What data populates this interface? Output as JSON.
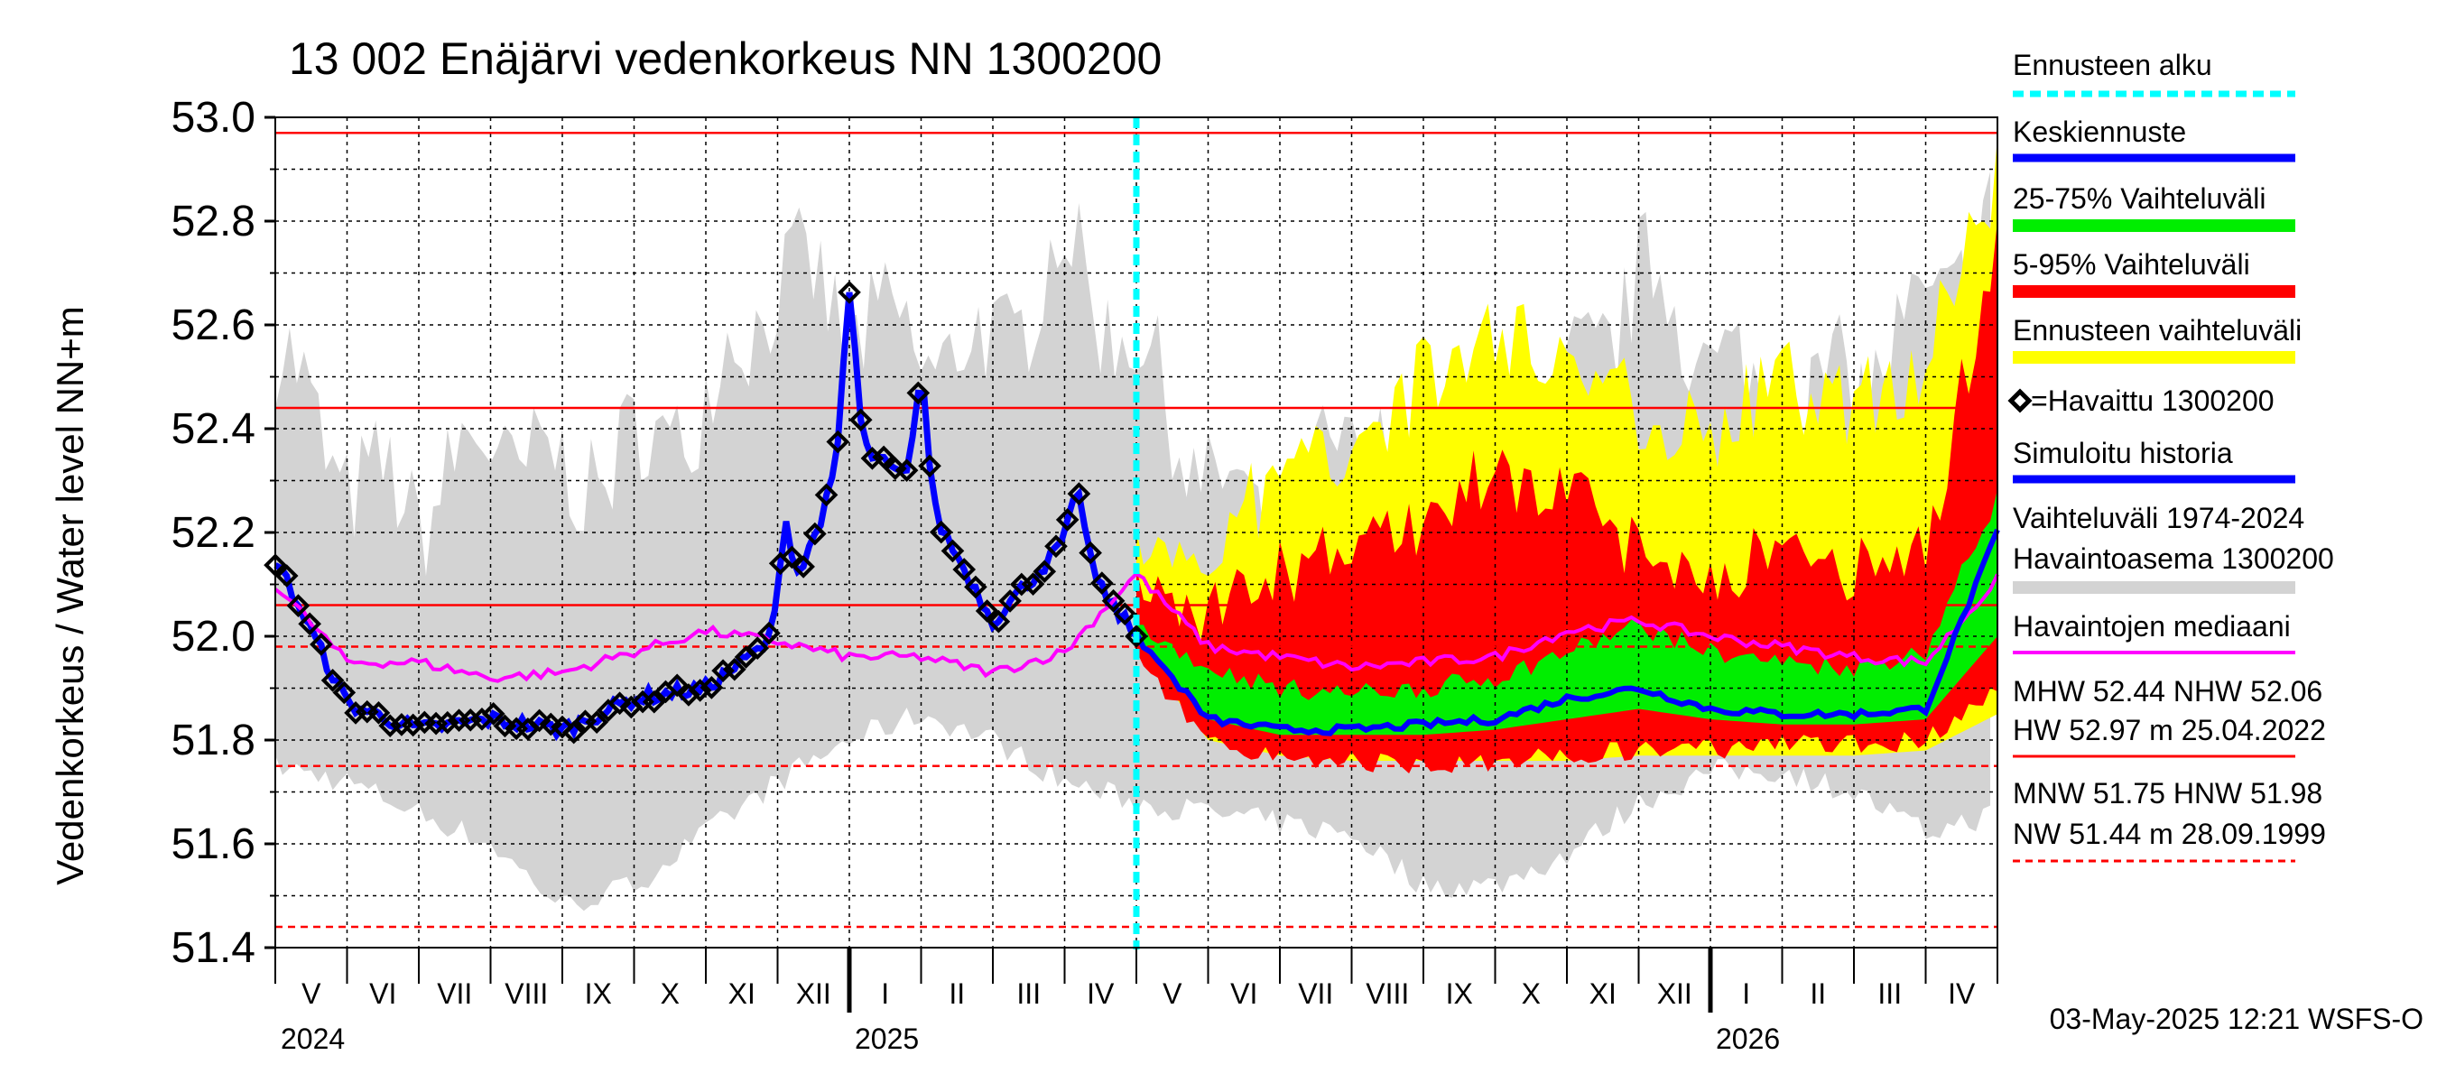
{
  "chart_data": {
    "type": "line",
    "title": "13 002 Enäjärvi vedenkorkeus NN 1300200",
    "ylabel": "Vedenkorkeus / Water level    NN+m",
    "ylim": [
      51.4,
      53.0
    ],
    "yticks": [
      "51.4",
      "51.6",
      "51.8",
      "52.0",
      "52.2",
      "52.4",
      "52.6",
      "52.8",
      "53.0"
    ],
    "months": [
      "V",
      "VI",
      "VII",
      "VIII",
      "IX",
      "X",
      "XI",
      "XII",
      "I",
      "II",
      "III",
      "IV",
      "V",
      "VI",
      "VII",
      "VIII",
      "IX",
      "X",
      "XI",
      "XII",
      "I",
      "II",
      "III",
      "IV"
    ],
    "years": [
      "2024",
      "2025",
      "2026"
    ],
    "forecast_start": "2025-05-01",
    "reference_lines": {
      "MHW": 52.44,
      "NHW": 52.06,
      "HW": 52.97,
      "MNW": 51.75,
      "HNW": 51.98,
      "NW": 51.44
    },
    "series": [
      {
        "name": "Havaittu 1300200",
        "monthly_values": [
          52.15,
          51.87,
          51.82,
          51.84,
          51.82,
          51.88,
          51.9,
          52.0,
          52.38,
          52.28,
          52.03,
          52.18,
          52.0
        ]
      },
      {
        "name": "Havaintojen mediaani",
        "monthly_values": [
          52.1,
          51.95,
          51.95,
          51.92,
          51.93,
          51.97,
          52.01,
          51.99,
          51.96,
          51.96,
          51.93,
          51.97,
          52.12,
          51.98,
          51.96,
          51.94,
          51.95,
          51.96,
          52.01,
          52.03,
          52.0,
          51.98,
          51.96,
          51.95,
          52.11
        ]
      },
      {
        "name": "Keskiennuste",
        "monthly_values": [
          52.0,
          51.84,
          51.82,
          51.82,
          51.83,
          51.84,
          51.88,
          51.9,
          51.86,
          51.85,
          51.85,
          51.86,
          52.2
        ]
      }
    ],
    "legend": {
      "forecast_start": "Ennusteen alku",
      "mean_forecast": "Keskiennuste",
      "range_25_75": "25-75% Vaihteluväli",
      "range_5_95": "5-95% Vaihteluväli",
      "forecast_range": "Ennusteen vaihteluväli",
      "observed": "=Havaittu 1300200",
      "simulated": "Simuloitu historia",
      "hist_range_1": "Vaihteluväli 1974-2024",
      "hist_range_2": " Havaintoasema 1300200",
      "median": "Havaintojen mediaani",
      "stat_1": "MHW  52.44 NHW  52.06",
      "stat_2": "HW  52.97 m 25.04.2022",
      "stat_3": "MNW  51.75 HNW  51.98",
      "stat_4": "NW  51.44 m 28.09.1999"
    },
    "timestamp": "03-May-2025 12:21 WSFS-O"
  },
  "colors": {
    "hist_band": "#d3d3d3",
    "forecast_range": "#ffff00",
    "range_5_95": "#ff0000",
    "range_25_75": "#00ee00",
    "mean": "#0000ff",
    "median": "#ff00ff",
    "observed": "#000000",
    "forecast_start": "#00ffff",
    "ref_solid": "#ff0000",
    "ref_dashed": "#ff0000"
  }
}
